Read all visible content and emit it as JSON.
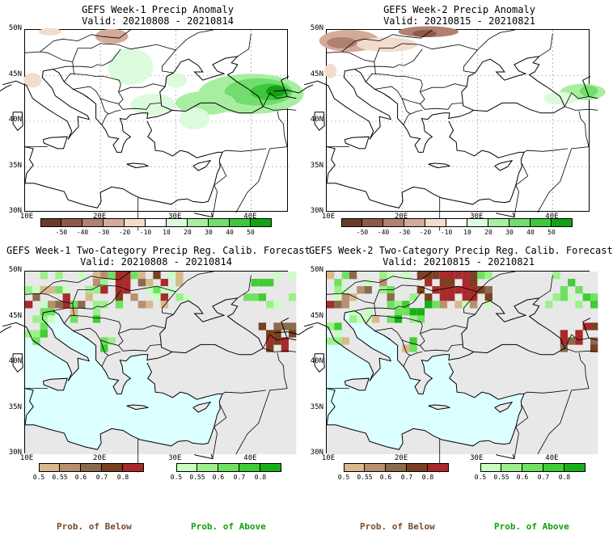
{
  "panels": {
    "p1": {
      "title": "GEFS Week-1 Precip Anomaly",
      "valid": "Valid: 20210808 - 20210814"
    },
    "p2": {
      "title": "GEFS Week-2 Precip Anomaly",
      "valid": "Valid: 20210815 - 20210821"
    },
    "p3": {
      "title": "GEFS Week-1 Two-Category Precip Reg. Calib. Forecast",
      "valid": "Valid: 20210808 - 20210814"
    },
    "p4": {
      "title": "GEFS Week-2 Two-Category Precip Reg. Calib. Forecast",
      "valid": "Valid: 20210815 - 20210821"
    }
  },
  "axes": {
    "lat_labels": [
      "50N",
      "45N",
      "40N",
      "35N",
      "30N"
    ],
    "lon_labels": [
      "10E",
      "20E",
      "30E",
      "40E"
    ]
  },
  "anomaly_colorbar": {
    "labels": [
      "-50",
      "-40",
      "-30",
      "-20",
      "-10",
      "10",
      "20",
      "30",
      "40",
      "50"
    ],
    "colors": [
      "#6b3b2a",
      "#8e5a48",
      "#b08070",
      "#d4aa98",
      "#f2dccd",
      "#ffffff",
      "#dcfadc",
      "#a8eea0",
      "#72dc6c",
      "#3cc83c",
      "#14a014"
    ]
  },
  "prob_colorbar": {
    "below_labels": [
      "0.5",
      "0.55",
      "0.6",
      "0.7",
      "0.8"
    ],
    "above_labels": [
      "0.5",
      "0.55",
      "0.6",
      "0.7",
      "0.8"
    ],
    "below_colors": [
      "#d8b88c",
      "#b89070",
      "#8c6a4c",
      "#7a4020",
      "#a82a2a"
    ],
    "above_colors": [
      "#c8ffc0",
      "#9cf08c",
      "#70e060",
      "#40cc34",
      "#18b018"
    ]
  },
  "footer": {
    "below_label": "Prob. of Below",
    "above_label": "Prob. of Above",
    "below_color": "#7a4a2a",
    "above_color": "#10a010"
  },
  "colors": {
    "ocean_prob": "#dcffff",
    "land_prob": "#e8e8e8"
  }
}
